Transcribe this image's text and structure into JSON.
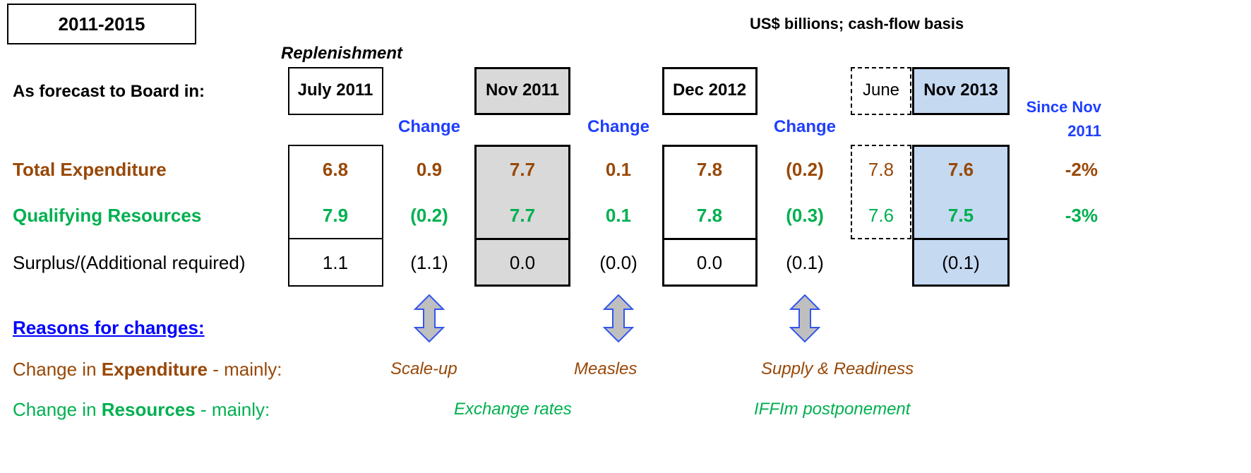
{
  "header": {
    "period": "2011-2015",
    "units": "US$ billions; cash-flow basis",
    "replenishment": "Replenishment",
    "forecast_label": "As forecast to Board in:"
  },
  "columns": [
    "July 2011",
    "Change",
    "Nov 2011",
    "Change",
    "Dec 2012",
    "Change",
    "June",
    "Nov 2013",
    "Since Nov 2011"
  ],
  "rows": [
    {
      "label": "Total Expenditure",
      "cells": [
        "6.8",
        "0.9",
        "7.7",
        "0.1",
        "7.8",
        "(0.2)",
        "7.8",
        "7.6",
        "-2%"
      ]
    },
    {
      "label": "Qualifying Resources",
      "cells": [
        "7.9",
        "(0.2)",
        "7.7",
        "0.1",
        "7.8",
        "(0.3)",
        "7.6",
        "7.5",
        "-3%"
      ]
    },
    {
      "label": "Surplus/(Additional required)",
      "cells": [
        "1.1",
        "(1.1)",
        "0.0",
        "(0.0)",
        "0.0",
        "(0.1)",
        null,
        "(0.1)",
        null
      ]
    }
  ],
  "reasons": {
    "title": "Reasons for changes:",
    "expenditure": {
      "parts": [
        "Change in ",
        "Expenditure",
        " - mainly:"
      ],
      "notes": [
        "Scale-up",
        "Measles",
        "Supply & Readiness"
      ]
    },
    "resources": {
      "parts": [
        "Change in ",
        "Resources",
        " - mainly:"
      ],
      "notes": [
        "Exchange rates",
        "IFFIm postponement"
      ]
    }
  }
}
